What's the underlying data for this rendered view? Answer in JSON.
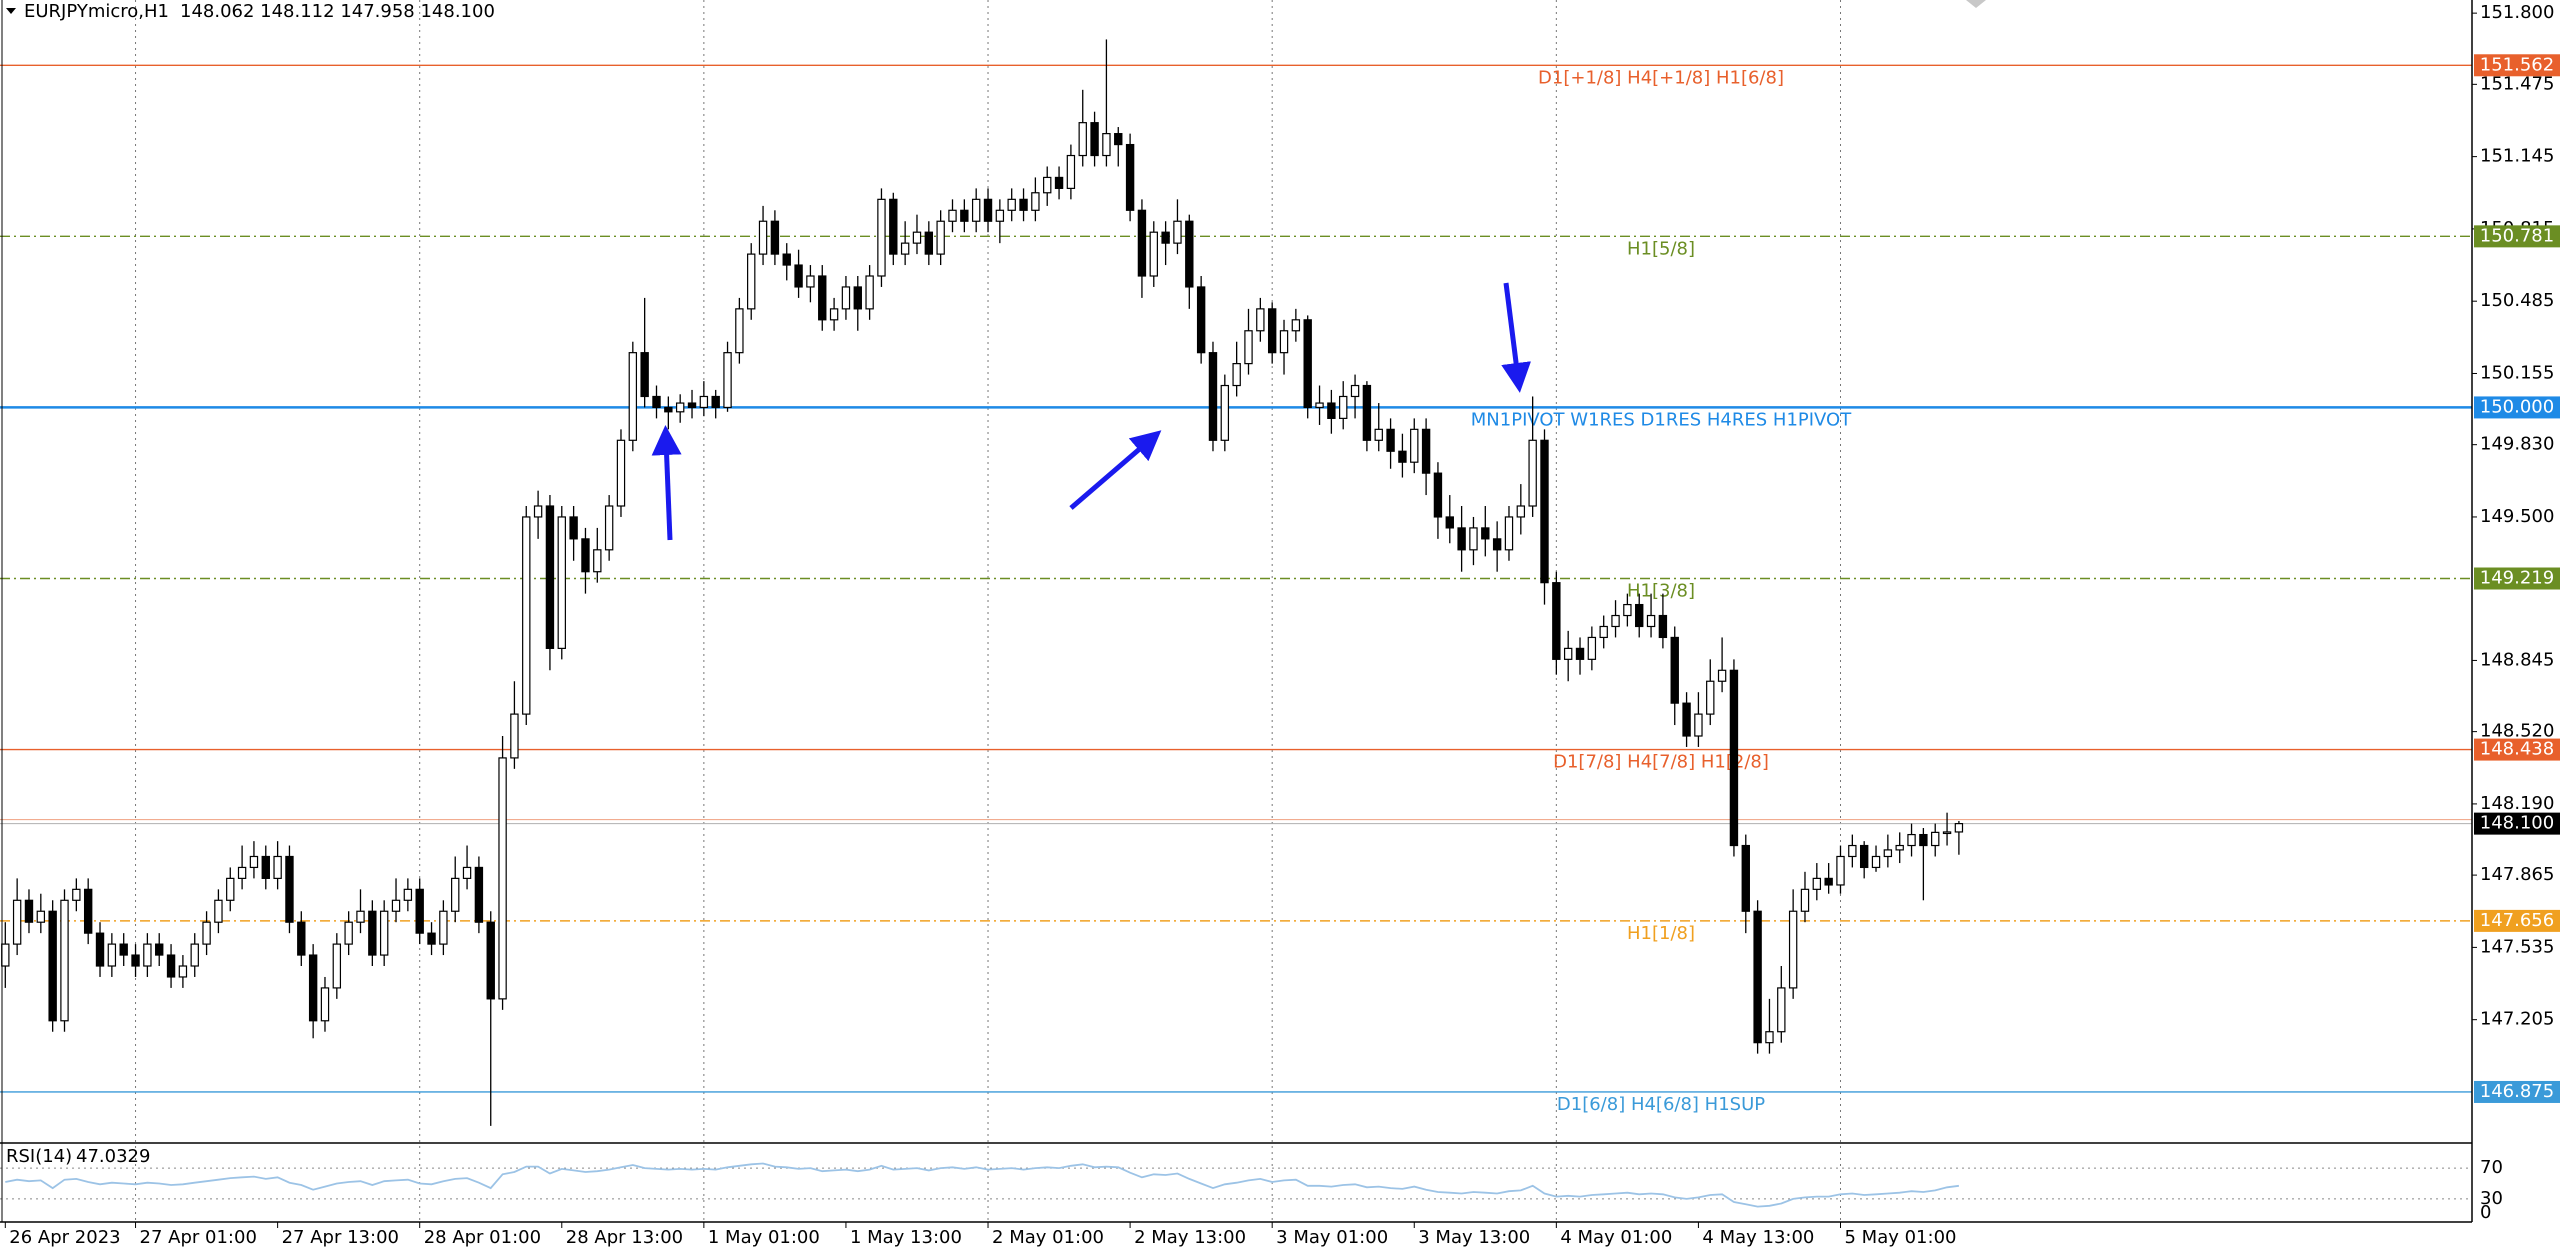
{
  "chart_data": {
    "type": "candlestick",
    "symbol": "EURJPYmicro,H1",
    "ohlc_header": "148.062 148.112 147.958 148.100",
    "ylim": [
      146.642,
      151.86
    ],
    "yticks": [
      {
        "value": 151.8,
        "label": "151.800"
      },
      {
        "value": 151.475,
        "label": "151.475"
      },
      {
        "value": 151.145,
        "label": "151.145"
      },
      {
        "value": 150.815,
        "label": "150.815"
      },
      {
        "value": 150.485,
        "label": "150.485"
      },
      {
        "value": 150.155,
        "label": "150.155"
      },
      {
        "value": 149.83,
        "label": "149.830"
      },
      {
        "value": 149.5,
        "label": "149.500"
      },
      {
        "value": 148.845,
        "label": "148.845"
      },
      {
        "value": 148.52,
        "label": "148.520"
      },
      {
        "value": 148.19,
        "label": "148.190"
      },
      {
        "value": 147.865,
        "label": "147.865"
      },
      {
        "value": 147.535,
        "label": "147.535"
      },
      {
        "value": 147.205,
        "label": "147.205"
      }
    ],
    "xticks": [
      {
        "value": 0,
        "label": "26 Apr 2023"
      },
      {
        "value": 11,
        "label": "27 Apr 01:00"
      },
      {
        "value": 23,
        "label": "27 Apr 13:00"
      },
      {
        "value": 35,
        "label": "28 Apr 01:00"
      },
      {
        "value": 47,
        "label": "28 Apr 13:00"
      },
      {
        "value": 59,
        "label": "1 May 01:00"
      },
      {
        "value": 71,
        "label": "1 May 13:00"
      },
      {
        "value": 83,
        "label": "2 May 01:00"
      },
      {
        "value": 95,
        "label": "2 May 13:00"
      },
      {
        "value": 107,
        "label": "3 May 01:00"
      },
      {
        "value": 119,
        "label": "3 May 13:00"
      },
      {
        "value": 131,
        "label": "4 May 01:00"
      },
      {
        "value": 143,
        "label": "4 May 13:00"
      },
      {
        "value": 155,
        "label": "5 May 01:00"
      }
    ],
    "up_color": "#ffffff",
    "down_color": "#000000",
    "ohlc": [
      [
        147.45,
        147.65,
        147.35,
        147.55
      ],
      [
        147.55,
        147.85,
        147.5,
        147.75
      ],
      [
        147.75,
        147.8,
        147.6,
        147.65
      ],
      [
        147.65,
        147.78,
        147.6,
        147.7
      ],
      [
        147.7,
        147.75,
        147.15,
        147.2
      ],
      [
        147.2,
        147.8,
        147.15,
        147.75
      ],
      [
        147.75,
        147.85,
        147.7,
        147.8
      ],
      [
        147.8,
        147.85,
        147.55,
        147.6
      ],
      [
        147.6,
        147.65,
        147.4,
        147.45
      ],
      [
        147.45,
        147.6,
        147.4,
        147.55
      ],
      [
        147.55,
        147.6,
        147.45,
        147.5
      ],
      [
        147.5,
        147.55,
        147.4,
        147.45
      ],
      [
        147.45,
        147.6,
        147.4,
        147.55
      ],
      [
        147.55,
        147.6,
        147.45,
        147.5
      ],
      [
        147.5,
        147.55,
        147.35,
        147.4
      ],
      [
        147.4,
        147.5,
        147.35,
        147.45
      ],
      [
        147.45,
        147.6,
        147.4,
        147.55
      ],
      [
        147.55,
        147.7,
        147.5,
        147.65
      ],
      [
        147.65,
        147.8,
        147.6,
        147.75
      ],
      [
        147.75,
        147.9,
        147.7,
        147.85
      ],
      [
        147.85,
        148.0,
        147.8,
        147.9
      ],
      [
        147.9,
        148.02,
        147.85,
        147.95
      ],
      [
        147.95,
        148.0,
        147.8,
        147.85
      ],
      [
        147.85,
        148.02,
        147.8,
        147.95
      ],
      [
        147.95,
        148.0,
        147.6,
        147.65
      ],
      [
        147.65,
        147.7,
        147.45,
        147.5
      ],
      [
        147.5,
        147.55,
        147.12,
        147.2
      ],
      [
        147.2,
        147.4,
        147.15,
        147.35
      ],
      [
        147.35,
        147.6,
        147.3,
        147.55
      ],
      [
        147.55,
        147.7,
        147.5,
        147.65
      ],
      [
        147.65,
        147.8,
        147.6,
        147.7
      ],
      [
        147.7,
        147.75,
        147.45,
        147.5
      ],
      [
        147.5,
        147.75,
        147.45,
        147.7
      ],
      [
        147.7,
        147.85,
        147.65,
        147.75
      ],
      [
        147.75,
        147.85,
        147.7,
        147.8
      ],
      [
        147.8,
        147.85,
        147.55,
        147.6
      ],
      [
        147.6,
        147.65,
        147.5,
        147.55
      ],
      [
        147.55,
        147.75,
        147.5,
        147.7
      ],
      [
        147.7,
        147.95,
        147.65,
        147.85
      ],
      [
        147.85,
        148.0,
        147.8,
        147.9
      ],
      [
        147.9,
        147.95,
        147.6,
        147.65
      ],
      [
        147.65,
        147.7,
        146.72,
        147.3
      ],
      [
        147.3,
        148.5,
        147.25,
        148.4
      ],
      [
        148.4,
        148.75,
        148.35,
        148.6
      ],
      [
        148.6,
        149.55,
        148.55,
        149.5
      ],
      [
        149.5,
        149.62,
        149.4,
        149.55
      ],
      [
        149.55,
        149.6,
        148.8,
        148.9
      ],
      [
        148.9,
        149.55,
        148.85,
        149.5
      ],
      [
        149.5,
        149.55,
        149.3,
        149.4
      ],
      [
        149.4,
        149.45,
        149.15,
        149.25
      ],
      [
        149.25,
        149.45,
        149.2,
        149.35
      ],
      [
        149.35,
        149.6,
        149.3,
        149.55
      ],
      [
        149.55,
        149.9,
        149.5,
        149.85
      ],
      [
        149.85,
        150.3,
        149.8,
        150.25
      ],
      [
        150.25,
        150.5,
        150.0,
        150.05
      ],
      [
        150.05,
        150.1,
        149.95,
        150.0
      ],
      [
        150.0,
        150.05,
        149.9,
        149.98
      ],
      [
        149.98,
        150.06,
        149.93,
        150.02
      ],
      [
        150.02,
        150.08,
        149.95,
        150.0
      ],
      [
        150.0,
        150.12,
        149.96,
        150.05
      ],
      [
        150.05,
        150.08,
        149.95,
        150.0
      ],
      [
        150.0,
        150.3,
        149.98,
        150.25
      ],
      [
        150.25,
        150.5,
        150.2,
        150.45
      ],
      [
        150.45,
        150.75,
        150.4,
        150.7
      ],
      [
        150.7,
        150.92,
        150.65,
        150.85
      ],
      [
        150.85,
        150.9,
        150.65,
        150.7
      ],
      [
        150.7,
        150.75,
        150.58,
        150.65
      ],
      [
        150.65,
        150.72,
        150.5,
        150.55
      ],
      [
        150.55,
        150.65,
        150.48,
        150.6
      ],
      [
        150.6,
        150.65,
        150.35,
        150.4
      ],
      [
        150.4,
        150.5,
        150.35,
        150.45
      ],
      [
        150.45,
        150.6,
        150.4,
        150.55
      ],
      [
        150.55,
        150.6,
        150.35,
        150.45
      ],
      [
        150.45,
        150.65,
        150.4,
        150.6
      ],
      [
        150.6,
        151.0,
        150.55,
        150.95
      ],
      [
        150.95,
        150.98,
        150.65,
        150.7
      ],
      [
        150.7,
        150.85,
        150.65,
        150.75
      ],
      [
        150.75,
        150.88,
        150.7,
        150.8
      ],
      [
        150.8,
        150.85,
        150.65,
        150.7
      ],
      [
        150.7,
        150.9,
        150.65,
        150.85
      ],
      [
        150.85,
        150.95,
        150.8,
        150.9
      ],
      [
        150.9,
        150.95,
        150.8,
        150.85
      ],
      [
        150.85,
        151.0,
        150.8,
        150.95
      ],
      [
        150.95,
        151.0,
        150.8,
        150.85
      ],
      [
        150.85,
        150.95,
        150.75,
        150.9
      ],
      [
        150.9,
        151.0,
        150.85,
        150.95
      ],
      [
        150.95,
        151.0,
        150.85,
        150.9
      ],
      [
        150.9,
        151.05,
        150.85,
        150.98
      ],
      [
        150.98,
        151.1,
        150.92,
        151.05
      ],
      [
        151.05,
        151.1,
        150.95,
        151.0
      ],
      [
        151.0,
        151.2,
        150.95,
        151.15
      ],
      [
        151.15,
        151.45,
        151.1,
        151.3
      ],
      [
        151.3,
        151.35,
        151.1,
        151.15
      ],
      [
        151.15,
        151.68,
        151.1,
        151.25
      ],
      [
        151.25,
        151.28,
        151.1,
        151.2
      ],
      [
        151.2,
        151.25,
        150.85,
        150.9
      ],
      [
        150.9,
        150.95,
        150.5,
        150.6
      ],
      [
        150.6,
        150.85,
        150.55,
        150.8
      ],
      [
        150.8,
        150.85,
        150.65,
        150.75
      ],
      [
        150.75,
        150.95,
        150.7,
        150.85
      ],
      [
        150.85,
        150.88,
        150.45,
        150.55
      ],
      [
        150.55,
        150.6,
        150.2,
        150.25
      ],
      [
        150.25,
        150.3,
        149.8,
        149.85
      ],
      [
        149.85,
        150.15,
        149.8,
        150.1
      ],
      [
        150.1,
        150.3,
        150.05,
        150.2
      ],
      [
        150.2,
        150.45,
        150.15,
        150.35
      ],
      [
        150.35,
        150.5,
        150.3,
        150.45
      ],
      [
        150.45,
        150.48,
        150.2,
        150.25
      ],
      [
        150.25,
        150.4,
        150.15,
        150.35
      ],
      [
        150.35,
        150.45,
        150.3,
        150.4
      ],
      [
        150.4,
        150.42,
        149.95,
        150.0
      ],
      [
        150.0,
        150.1,
        149.92,
        150.02
      ],
      [
        150.02,
        150.08,
        149.88,
        149.95
      ],
      [
        149.95,
        150.12,
        149.9,
        150.05
      ],
      [
        150.05,
        150.15,
        149.95,
        150.1
      ],
      [
        150.1,
        150.12,
        149.8,
        149.85
      ],
      [
        149.85,
        150.02,
        149.8,
        149.9
      ],
      [
        149.9,
        149.95,
        149.72,
        149.8
      ],
      [
        149.8,
        149.88,
        149.68,
        149.75
      ],
      [
        149.75,
        149.95,
        149.7,
        149.9
      ],
      [
        149.9,
        149.95,
        149.6,
        149.7
      ],
      [
        149.7,
        149.75,
        149.4,
        149.5
      ],
      [
        149.5,
        149.6,
        149.38,
        149.45
      ],
      [
        149.45,
        149.55,
        149.25,
        149.35
      ],
      [
        149.35,
        149.5,
        149.28,
        149.45
      ],
      [
        149.45,
        149.55,
        149.32,
        149.4
      ],
      [
        149.4,
        149.48,
        149.25,
        149.35
      ],
      [
        149.35,
        149.55,
        149.3,
        149.5
      ],
      [
        149.5,
        149.65,
        149.42,
        149.55
      ],
      [
        149.55,
        150.05,
        149.5,
        149.85
      ],
      [
        149.85,
        149.9,
        149.1,
        149.2
      ],
      [
        149.2,
        149.25,
        148.78,
        148.85
      ],
      [
        148.85,
        148.98,
        148.75,
        148.9
      ],
      [
        148.9,
        148.95,
        148.78,
        148.85
      ],
      [
        148.85,
        149.0,
        148.8,
        148.95
      ],
      [
        148.95,
        149.05,
        148.9,
        149.0
      ],
      [
        149.0,
        149.12,
        148.95,
        149.05
      ],
      [
        149.05,
        149.15,
        149.0,
        149.1
      ],
      [
        149.1,
        149.15,
        148.95,
        149.0
      ],
      [
        149.0,
        149.15,
        148.95,
        149.05
      ],
      [
        149.05,
        149.15,
        148.9,
        148.95
      ],
      [
        148.95,
        149.0,
        148.55,
        148.65
      ],
      [
        148.65,
        148.7,
        148.45,
        148.5
      ],
      [
        148.5,
        148.7,
        148.45,
        148.6
      ],
      [
        148.6,
        148.85,
        148.55,
        148.75
      ],
      [
        148.75,
        148.95,
        148.7,
        148.8
      ],
      [
        148.8,
        148.85,
        147.95,
        148.0
      ],
      [
        148.0,
        148.05,
        147.6,
        147.7
      ],
      [
        147.7,
        147.75,
        147.05,
        147.1
      ],
      [
        147.1,
        147.3,
        147.05,
        147.15
      ],
      [
        147.15,
        147.45,
        147.1,
        147.35
      ],
      [
        147.35,
        147.8,
        147.3,
        147.7
      ],
      [
        147.7,
        147.88,
        147.65,
        147.8
      ],
      [
        147.8,
        147.92,
        147.75,
        147.85
      ],
      [
        147.85,
        147.92,
        147.78,
        147.82
      ],
      [
        147.82,
        148.0,
        147.78,
        147.95
      ],
      [
        147.95,
        148.05,
        147.9,
        148.0
      ],
      [
        148.0,
        148.02,
        147.85,
        147.9
      ],
      [
        147.9,
        148.0,
        147.88,
        147.95
      ],
      [
        147.95,
        148.05,
        147.9,
        147.98
      ],
      [
        147.98,
        148.06,
        147.92,
        148.0
      ],
      [
        148.0,
        148.1,
        147.95,
        148.05
      ],
      [
        148.05,
        148.08,
        147.75,
        148.0
      ],
      [
        148.0,
        148.1,
        147.95,
        148.06
      ],
      [
        148.06,
        148.15,
        148.0,
        148.062
      ],
      [
        148.062,
        148.112,
        147.958,
        148.1
      ]
    ],
    "levels": [
      {
        "value": 151.562,
        "label": "151.562",
        "text": "D1[+1/8] H4[+1/8] H1[6/8]",
        "color": "#e8602c",
        "dashed": false
      },
      {
        "value": 150.781,
        "label": "150.781",
        "text": "H1[5/8]",
        "color": "#6b8e23",
        "dashed": true
      },
      {
        "value": 150,
        "label": "150.000",
        "text": "MN1PIVOT W1RES D1RES H4RES H1PIVOT",
        "color": "#1e8ae6",
        "dashed": false
      },
      {
        "value": 149.219,
        "label": "149.219",
        "text": "H1[3/8]",
        "color": "#6b8e23",
        "dashed": true
      },
      {
        "value": 148.438,
        "label": "148.438",
        "text": "D1[7/8] H4[7/8] H1[2/8]",
        "color": "#e8602c",
        "dashed": false
      },
      {
        "value": 147.656,
        "label": "147.656",
        "text": "H1[1/8]",
        "color": "#f0a020",
        "dashed": true
      },
      {
        "value": 146.875,
        "label": "146.875",
        "text": "D1[6/8] H4[6/8] H1SUP",
        "color": "#3a9ad9",
        "dashed": false
      }
    ],
    "bid": {
      "value": 148.1,
      "label": "148.100"
    },
    "rsi": {
      "title": "RSI(14)",
      "color": "#9cc3e6",
      "ylim": [
        0,
        100
      ],
      "yticks": [
        70,
        30,
        0
      ],
      "values": [
        52,
        55,
        53,
        54,
        44,
        55,
        56,
        52,
        49,
        51,
        50,
        49,
        51,
        50,
        48,
        49,
        51,
        53,
        55,
        57,
        58,
        59,
        56,
        58,
        51,
        48,
        42,
        46,
        50,
        52,
        53,
        48,
        53,
        54,
        55,
        50,
        49,
        53,
        56,
        57,
        51,
        44,
        62,
        65,
        72,
        72,
        63,
        69,
        67,
        65,
        66,
        68,
        71,
        74,
        70,
        69,
        68,
        69,
        68,
        69,
        68,
        71,
        73,
        75,
        76,
        72,
        71,
        69,
        70,
        66,
        67,
        68,
        66,
        68,
        73,
        68,
        69,
        70,
        67,
        70,
        71,
        69,
        71,
        68,
        69,
        70,
        68,
        70,
        71,
        70,
        73,
        75,
        71,
        72,
        71,
        64,
        58,
        62,
        61,
        63,
        56,
        50,
        44,
        49,
        51,
        54,
        56,
        52,
        54,
        55,
        47,
        47,
        46,
        48,
        49,
        45,
        46,
        44,
        43,
        46,
        42,
        39,
        38,
        37,
        39,
        38,
        37,
        40,
        41,
        47,
        37,
        33,
        34,
        33,
        35,
        36,
        37,
        38,
        36,
        37,
        36,
        32,
        30,
        32,
        35,
        36,
        26,
        23,
        20,
        21,
        24,
        30,
        32,
        33,
        33,
        36,
        37,
        35,
        36,
        37,
        38,
        40,
        39,
        41,
        45,
        47.0329
      ]
    }
  }
}
